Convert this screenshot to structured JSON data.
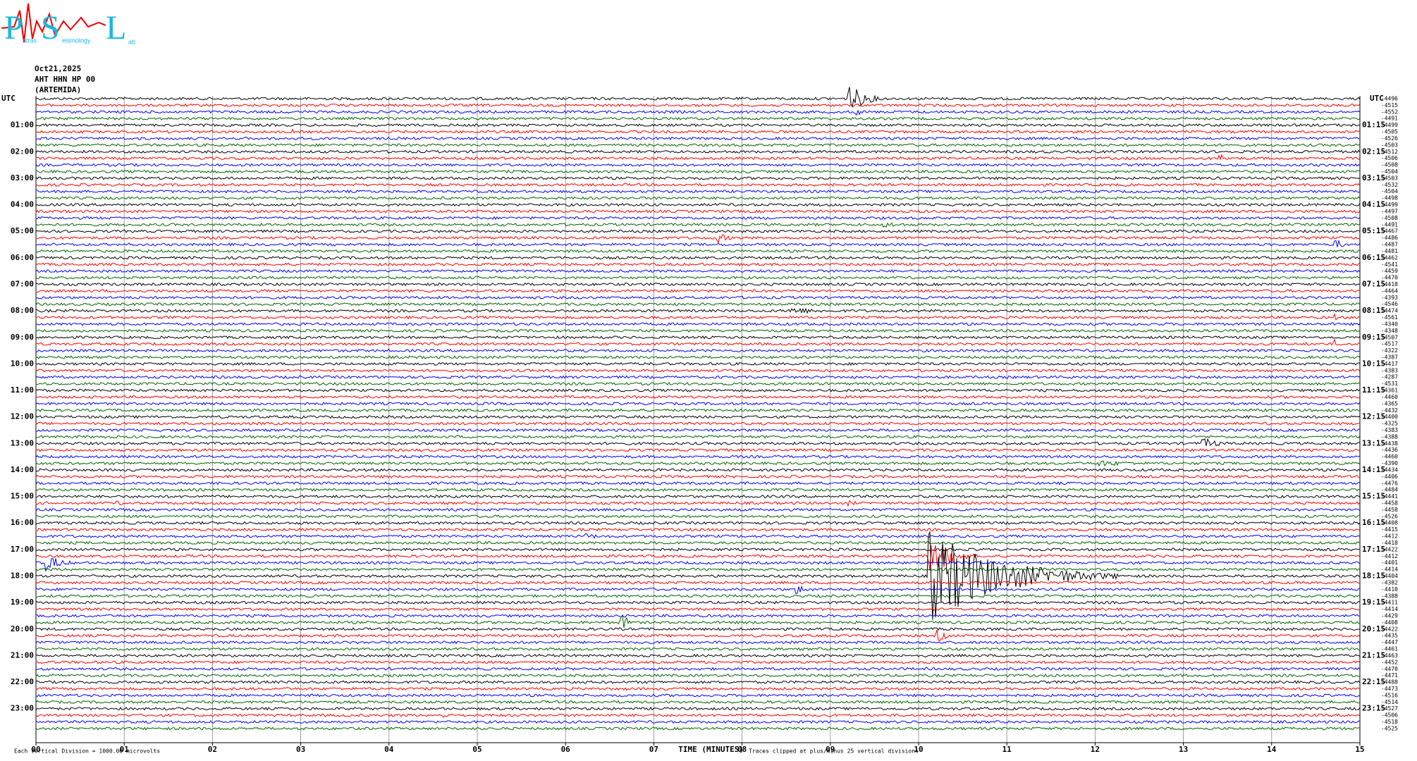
{
  "header": {
    "logo": {
      "letters": [
        "P",
        "S",
        "L"
      ],
      "subtext": [
        "atras",
        "eismology",
        "ab"
      ]
    },
    "date": "Oct21,2025",
    "station": "AHT HHN HP 00",
    "site": "(ARTEMIDA)"
  },
  "chart_data": {
    "type": "helicorder",
    "utc_label": "UTC",
    "left_labels": [
      "01:00",
      "02:00",
      "03:00",
      "04:00",
      "05:00",
      "06:00",
      "07:00",
      "08:00",
      "09:00",
      "10:00",
      "11:00",
      "12:00",
      "13:00",
      "14:00",
      "15:00",
      "16:00",
      "17:00",
      "18:00",
      "19:00",
      "20:00",
      "21:00",
      "22:00",
      "23:00"
    ],
    "right_labels": [
      "01:15",
      "02:15",
      "03:15",
      "04:15",
      "05:15",
      "06:15",
      "07:15",
      "08:15",
      "09:15",
      "10:15",
      "11:15",
      "12:15",
      "13:15",
      "14:15",
      "15:15",
      "16:15",
      "17:15",
      "18:15",
      "19:15",
      "20:15",
      "21:15",
      "22:15",
      "23:15"
    ],
    "trace_labels": [
      -4496,
      -4515,
      -4552,
      -4491,
      -4499,
      -4505,
      -4526,
      -4503,
      -4512,
      -4506,
      -4508,
      -4504,
      -4503,
      -4532,
      -4504,
      -4498,
      -4499,
      -4497,
      -4508,
      -4491,
      -4467,
      -4486,
      -4487,
      -4481,
      -4462,
      -4541,
      -4459,
      -4470,
      -4418,
      -4464,
      -4393,
      -4546,
      -4474,
      -4561,
      -4340,
      -4348,
      -4507,
      -4517,
      -4322,
      -4387,
      -4417,
      -4383,
      -4287,
      -4531,
      -4361,
      -4460,
      -4365,
      -4432,
      -4400,
      -4325,
      -4383,
      -4388,
      -4438,
      -4436,
      -4460,
      -4390,
      -4434,
      -4406,
      -4476,
      -4484,
      -4441,
      -4458,
      -4458,
      -4526,
      -4408,
      -4415,
      -4412,
      -4418,
      -4422,
      -4412,
      -4401,
      -4414,
      -4404,
      -4382,
      -4410,
      -4388,
      -4411,
      -4414,
      -4429,
      -4408,
      -4422,
      -4435,
      -4447,
      -4461,
      -4463,
      -4452,
      -4470,
      -4471,
      -4488,
      -4473,
      -4516,
      -4514,
      -4527,
      -4506,
      -4518,
      -4525
    ],
    "colors": [
      "#000000",
      "#ff0000",
      "#0000ff",
      "#006400"
    ],
    "xlim": [
      0,
      15
    ],
    "xticks": [
      {
        "value": 0,
        "label": "00"
      },
      {
        "value": 1,
        "label": "01"
      },
      {
        "value": 2,
        "label": "02"
      },
      {
        "value": 3,
        "label": "03"
      },
      {
        "value": 4,
        "label": "04"
      },
      {
        "value": 5,
        "label": "05"
      },
      {
        "value": 6,
        "label": "06"
      },
      {
        "value": 7,
        "label": "07"
      },
      {
        "value": 8,
        "label": "08"
      },
      {
        "value": 9,
        "label": "09"
      },
      10,
      11,
      12,
      13,
      14,
      15
    ],
    "xlabel": "TIME (MINUTES)",
    "scale_note": "Each Vertical Division = 1000.00 microvolts",
    "clip_note": "Traces clipped at plus/minus 25 vertical divisions"
  }
}
